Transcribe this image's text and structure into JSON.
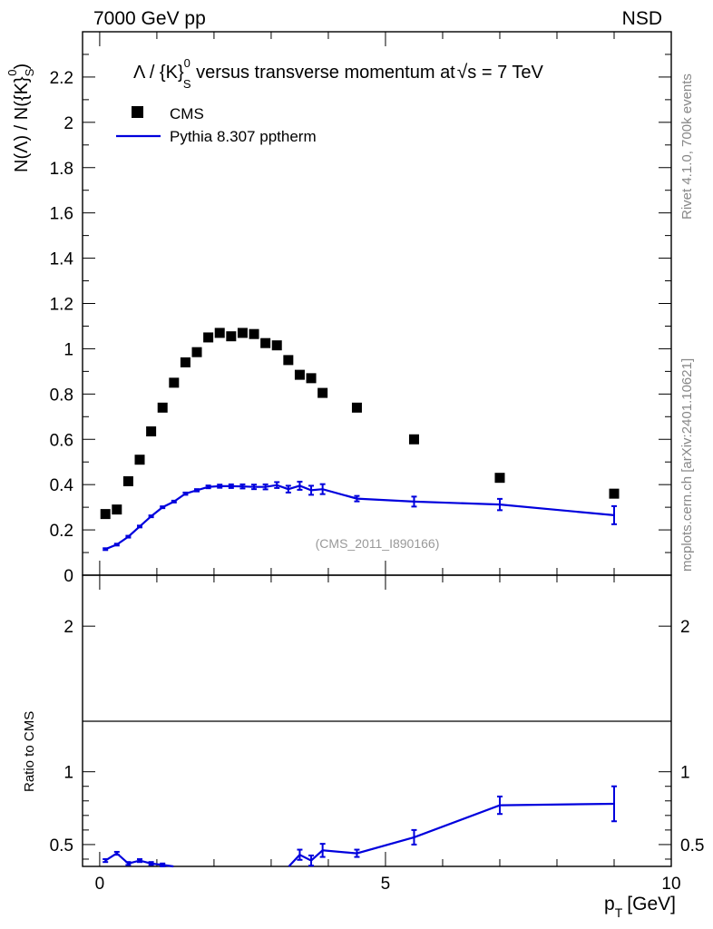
{
  "header": {
    "left": "7000 GeV pp",
    "right": "NSD",
    "side_rivet": "Rivet 4.1.0,  700k events",
    "side_mcplots": "mcplots.cern.ch [arXiv:2401.10621]",
    "analysis_tag": "(CMS_2011_I890166)"
  },
  "colors": {
    "data": "#000000",
    "mc": "#0000dd",
    "axis": "#000000",
    "tag": "#999999",
    "side": "#888888"
  },
  "chart_data": {
    "type": "scatter",
    "title": "Λ / {K}S0 versus transverse momentum at √s = 7 TeV",
    "title_parts": {
      "lead": "Λ / {K}",
      "sup": "0",
      "sub": "S",
      "rest": " versus transverse momentum at",
      "sqrt": "√",
      "s": "s",
      "tail": " = 7 TeV"
    },
    "xlabel": "pT [GeV]",
    "xlabel_parts": {
      "p": "p",
      "sub": "T",
      "unit": "[GeV]"
    },
    "ylabel": "N(Λ)  /  N({K}S0)",
    "ylabel_parts": {
      "lead": "N(Λ)  /  N({K}",
      "sub": "S",
      "sup": "0",
      "close": ")"
    },
    "ratio_ylabel": "Ratio to CMS",
    "xlim": [
      -0.3,
      10.0
    ],
    "ylim": [
      0,
      2.4
    ],
    "ratio_ylim": [
      0.35,
      2.35
    ],
    "x_ticks": [
      0,
      5,
      10
    ],
    "y_ticks": [
      0,
      0.2,
      0.4,
      0.6,
      0.8,
      1,
      1.2,
      1.4,
      1.6,
      1.8,
      2,
      2.2
    ],
    "y_tick_labels": [
      "0",
      "0.2",
      "0.4",
      "0.6",
      "0.8",
      "1",
      "1.2",
      "1.4",
      "1.6",
      "1.8",
      "2",
      "2.2"
    ],
    "ratio_ticks": [
      0.5,
      1,
      2
    ],
    "ratio_tick_labels": [
      "0.5",
      "1",
      "2"
    ],
    "legend_position": "top-left",
    "series": [
      {
        "name": "CMS",
        "style": "markers",
        "x": [
          0.1,
          0.3,
          0.5,
          0.7,
          0.9,
          1.1,
          1.3,
          1.5,
          1.7,
          1.9,
          2.1,
          2.3,
          2.5,
          2.7,
          2.9,
          3.1,
          3.3,
          3.5,
          3.7,
          3.9,
          4.5,
          5.5,
          7.0,
          9.0
        ],
        "y": [
          0.27,
          0.29,
          0.415,
          0.51,
          0.635,
          0.74,
          0.85,
          0.94,
          0.985,
          1.05,
          1.07,
          1.055,
          1.07,
          1.065,
          1.025,
          1.015,
          0.95,
          0.885,
          0.87,
          0.805,
          0.74,
          0.6,
          0.43,
          0.36
        ]
      },
      {
        "name": "Pythia 8.307 pptherm",
        "style": "line",
        "x": [
          0.1,
          0.3,
          0.5,
          0.7,
          0.9,
          1.1,
          1.3,
          1.5,
          1.7,
          1.9,
          2.1,
          2.3,
          2.5,
          2.7,
          2.9,
          3.1,
          3.3,
          3.5,
          3.7,
          3.9,
          4.5,
          5.5,
          7.0,
          9.0
        ],
        "y": [
          0.115,
          0.135,
          0.17,
          0.215,
          0.26,
          0.3,
          0.325,
          0.36,
          0.375,
          0.39,
          0.393,
          0.393,
          0.392,
          0.39,
          0.39,
          0.398,
          0.38,
          0.395,
          0.375,
          0.38,
          0.338,
          0.325,
          0.312,
          0.265
        ],
        "err": [
          0.004,
          0.004,
          0.004,
          0.004,
          0.004,
          0.004,
          0.004,
          0.005,
          0.005,
          0.006,
          0.007,
          0.008,
          0.009,
          0.01,
          0.011,
          0.013,
          0.015,
          0.018,
          0.02,
          0.022,
          0.012,
          0.022,
          0.025,
          0.04
        ]
      }
    ],
    "ratio": {
      "name": "Pythia 8.307 pptherm / CMS",
      "x": [
        0.1,
        0.3,
        0.5,
        0.7,
        0.9,
        1.1,
        3.5,
        3.7,
        3.9,
        4.5,
        5.5,
        7.0,
        9.0
      ],
      "y": [
        0.39,
        0.44,
        0.37,
        0.39,
        0.37,
        0.36,
        0.43,
        0.39,
        0.46,
        0.44,
        0.55,
        0.77,
        0.78
      ],
      "err": [
        0.01,
        0.01,
        0.01,
        0.01,
        0.01,
        0.01,
        0.035,
        0.035,
        0.045,
        0.025,
        0.05,
        0.06,
        0.12
      ],
      "segments": [
        [
          0,
          5
        ],
        [
          6,
          12
        ]
      ]
    }
  }
}
